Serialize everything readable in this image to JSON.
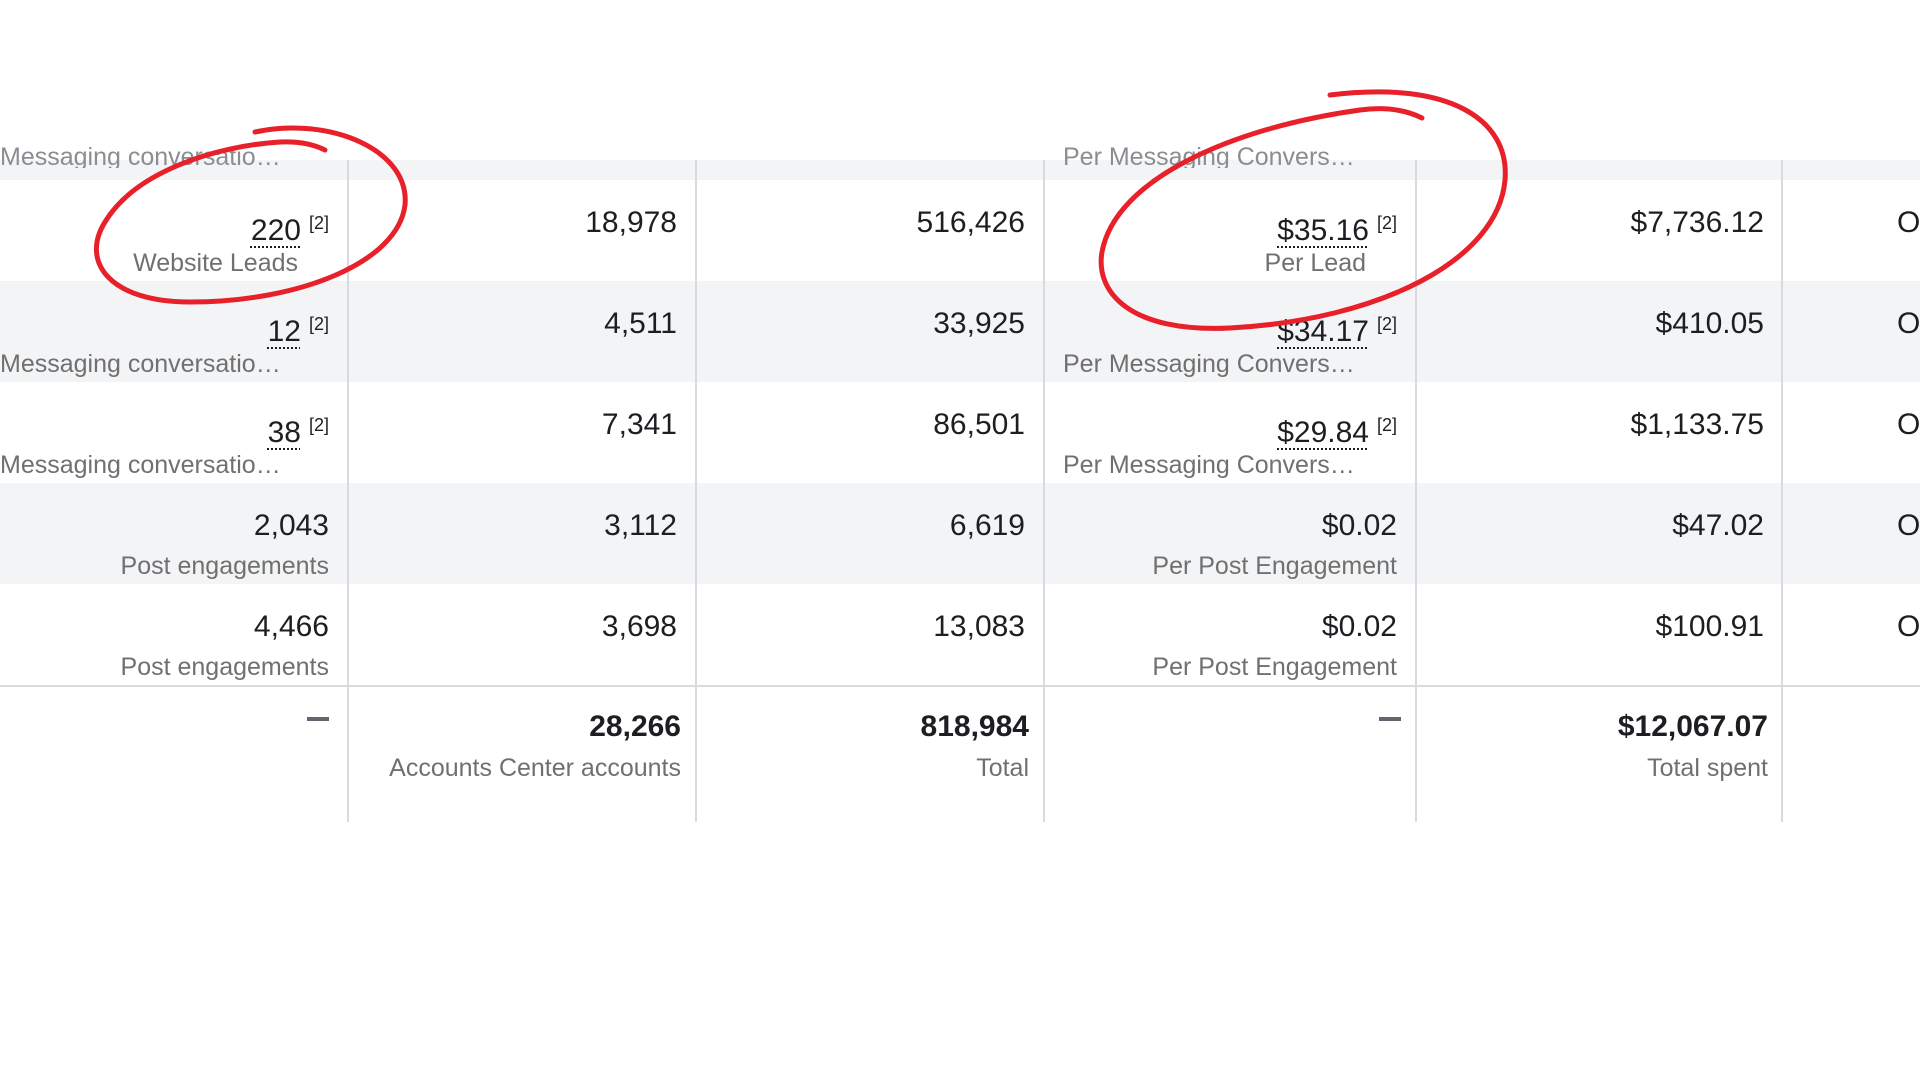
{
  "header": {
    "col1_sub": "Messaging conversatio…",
    "col4_sub": "Per Messaging Convers…"
  },
  "rows": [
    {
      "results": "220",
      "results_fn": "[2]",
      "results_type": "Website Leads",
      "reach": "18,978",
      "impressions": "516,426",
      "cost": "$35.16",
      "cost_fn": "[2]",
      "cost_type": "Per Lead",
      "spent": "$7,736.12",
      "next": "O"
    },
    {
      "results": "12",
      "results_fn": "[2]",
      "results_type": "Messaging conversatio…",
      "reach": "4,511",
      "impressions": "33,925",
      "cost": "$34.17",
      "cost_fn": "[2]",
      "cost_type": "Per Messaging Convers…",
      "spent": "$410.05",
      "next": "O"
    },
    {
      "results": "38",
      "results_fn": "[2]",
      "results_type": "Messaging conversatio…",
      "reach": "7,341",
      "impressions": "86,501",
      "cost": "$29.84",
      "cost_fn": "[2]",
      "cost_type": "Per Messaging Convers…",
      "spent": "$1,133.75",
      "next": "O"
    },
    {
      "results": "2,043",
      "results_type": "Post engagements",
      "reach": "3,112",
      "impressions": "6,619",
      "cost": "$0.02",
      "cost_type": "Per Post Engagement",
      "spent": "$47.02",
      "next": "O"
    },
    {
      "results": "4,466",
      "results_type": "Post engagements",
      "reach": "3,698",
      "impressions": "13,083",
      "cost": "$0.02",
      "cost_type": "Per Post Engagement",
      "spent": "$100.91",
      "next": "O"
    }
  ],
  "totals": {
    "results": "–",
    "reach": "28,266",
    "reach_label": "Accounts Center accounts",
    "impressions": "818,984",
    "impressions_label": "Total",
    "cost": "–",
    "spent": "$12,067.07",
    "spent_label": "Total spent"
  },
  "colors": {
    "annotation": "#e8202a",
    "band": "#f3f4f6",
    "divider": "#d8dadf"
  }
}
